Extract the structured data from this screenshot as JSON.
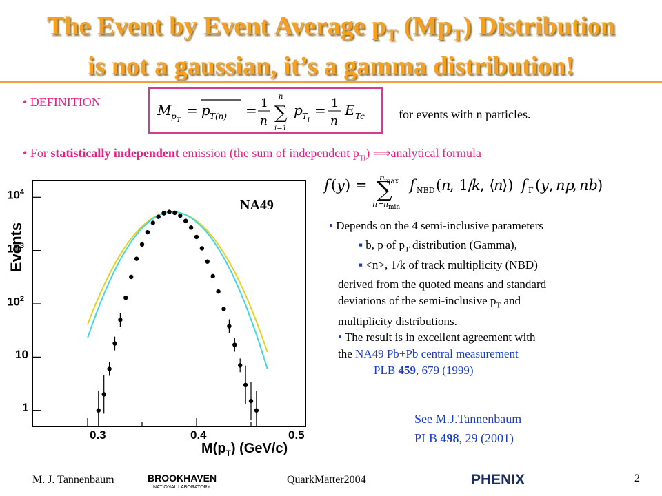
{
  "title": {
    "line1_pre": "The Event by Event Average p",
    "line1_sub1": "T",
    "line1_mid": " (Mp",
    "line1_sub2": "T",
    "line1_post": ") Distribution",
    "line2": "is not a gaussian, it’s a gamma distribution!"
  },
  "definition": {
    "bullet": "DEFINITION",
    "suffix": "for events with n particles."
  },
  "independent": {
    "pre": "For ",
    "bold": "statistically independent",
    "mid": " emission (the sum of independent p",
    "sub": "Ti",
    "post": ") ⟹analytical formula"
  },
  "plot": {
    "ylabel": "Events",
    "xlabel": "M(p",
    "xlabel_sub": "T",
    "xlabel_post": ") (GeV/c)",
    "label": "NA49",
    "yticks": [
      "10",
      "10",
      "10",
      "10",
      "1"
    ],
    "yticks_exp": [
      "4",
      "3",
      "2",
      "",
      ""
    ],
    "xticks": [
      "0.3",
      "0.4",
      "0.5"
    ]
  },
  "chart_data": {
    "type": "scatter",
    "xlabel": "M(pT) (GeV/c)",
    "ylabel": "Events",
    "xlim": [
      0.25,
      0.5
    ],
    "ylim": [
      0.5,
      20000
    ],
    "yscale": "log",
    "series": [
      {
        "name": "",
        "x": [
          0.31,
          0.315,
          0.32,
          0.325,
          0.33,
          0.335,
          0.34,
          0.345,
          0.35,
          0.355,
          0.36,
          0.365,
          0.37,
          0.375,
          0.38,
          0.385,
          0.39,
          0.395,
          0.4,
          0.405,
          0.41,
          0.415,
          0.42,
          0.425,
          0.43,
          0.435,
          0.44,
          0.445,
          0.45,
          0.455
        ],
        "y": [
          1,
          2,
          6,
          18,
          50,
          130,
          320,
          700,
          1300,
          2200,
          3300,
          4300,
          5000,
          5300,
          5100,
          4500,
          3600,
          2700,
          1800,
          1100,
          620,
          330,
          170,
          80,
          38,
          17,
          7,
          3,
          1.5,
          1
        ]
      }
    ]
  },
  "formula_desc": "Depends on the 4 semi-inclusive parameters",
  "param1": {
    "pre": "b, p of p",
    "sub": "T",
    "post": " distribution (Gamma),"
  },
  "param2": "<n>, 1/k of track multiplicity (NBD)",
  "derived": {
    "line1": "derived from the quoted means and standard",
    "line2_pre": "deviations of the semi-inclusive p",
    "line2_sub": "T",
    "line2_post": " and",
    "line3": "multiplicity distributions."
  },
  "result": {
    "line1": "The result is in excellent agreement with",
    "line2_pre": "the ",
    "line2_blue": "NA49 Pb+Pb central measurement",
    "line3_pre": "PLB ",
    "line3_bold": "459",
    "line3_post": ", 679 (1999)"
  },
  "see": {
    "line1": "See M.J.Tannenbaum",
    "line2_pre": "PLB ",
    "line2_bold": "498",
    "line2_post": ", 29 (2001)"
  },
  "footer": {
    "author": "M. J. Tannenbaum",
    "bnl_top": "BROOKHAVEN",
    "bnl_bottom": "NATIONAL LABORATORY",
    "conference": "QuarkMatter2004",
    "phenix": "PHENIX",
    "page": "2"
  },
  "colors": {
    "title": "#f5a020",
    "accent": "#e8207e",
    "link": "#1a3ec8",
    "rule": "#f0a040"
  }
}
